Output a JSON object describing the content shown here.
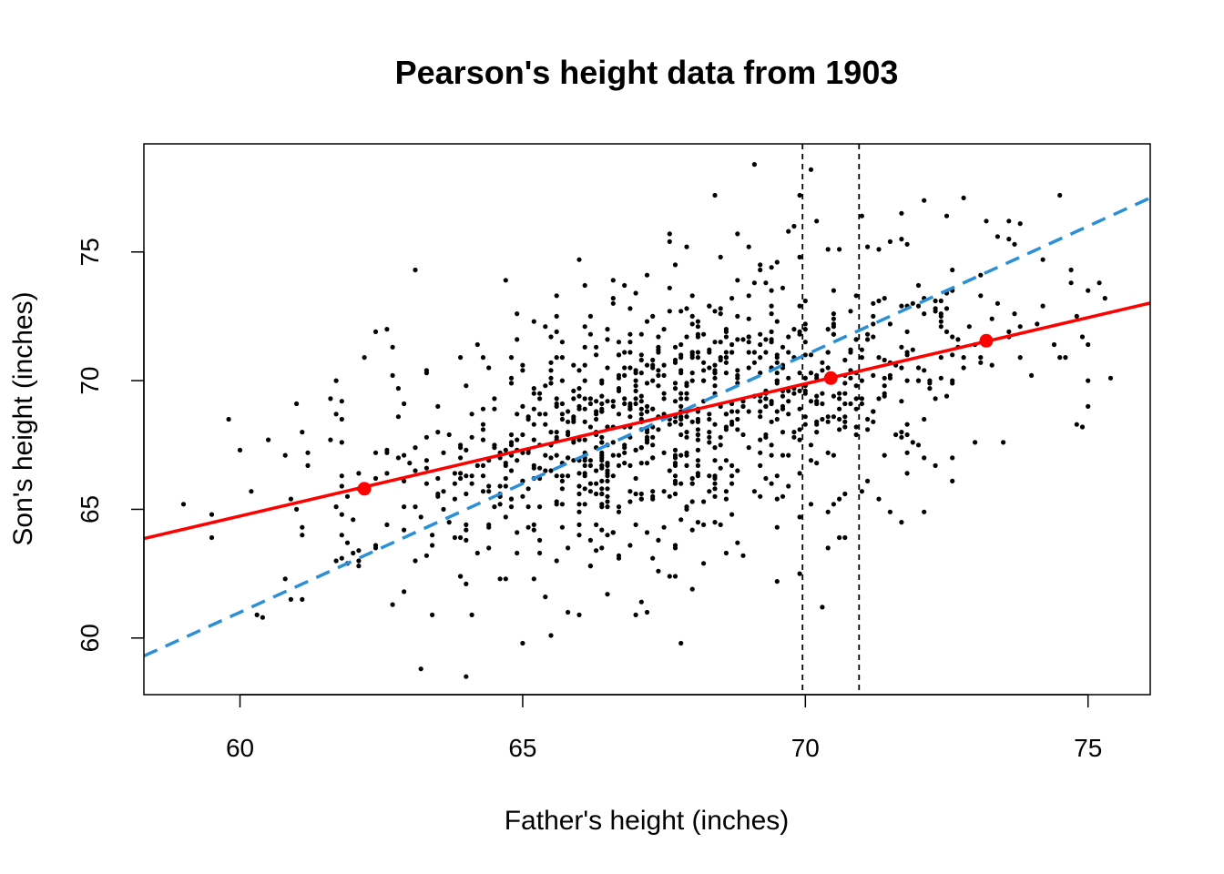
{
  "chart_data": {
    "type": "scatter",
    "title": "Pearson's height data from 1903",
    "xlabel": "Father's height (inches)",
    "ylabel": "Son's height (inches)",
    "xlim": [
      58.3,
      76.1
    ],
    "ylim": [
      57.8,
      79.2
    ],
    "xticks": [
      60,
      65,
      70,
      75
    ],
    "yticks": [
      60,
      65,
      70,
      75
    ],
    "grid": false,
    "legend": "none",
    "point_color": "#000000",
    "regression_line": {
      "intercept": 33.9,
      "slope": 0.514,
      "color": "#FF0000",
      "style": "solid"
    },
    "identity_line": {
      "intercept": 1.0,
      "slope": 1.0,
      "color": "#2B8FD8",
      "style": "dashed"
    },
    "vertical_lines": [
      69.95,
      70.95
    ],
    "highlighted_points": [
      {
        "x": 62.2,
        "y": 65.8
      },
      {
        "x": 70.45,
        "y": 70.1
      },
      {
        "x": 73.2,
        "y": 71.55
      }
    ],
    "highlight_color": "#FF0000",
    "outlier_points": [
      {
        "x": 59.0,
        "y": 65.2
      },
      {
        "x": 59.5,
        "y": 64.8
      },
      {
        "x": 59.5,
        "y": 63.9
      },
      {
        "x": 60.0,
        "y": 67.3
      },
      {
        "x": 60.2,
        "y": 65.7
      },
      {
        "x": 60.4,
        "y": 60.8
      },
      {
        "x": 60.8,
        "y": 62.3
      },
      {
        "x": 61.0,
        "y": 69.1
      },
      {
        "x": 61.1,
        "y": 68.0
      },
      {
        "x": 61.0,
        "y": 65.0
      },
      {
        "x": 61.1,
        "y": 64.3
      },
      {
        "x": 61.6,
        "y": 67.7
      },
      {
        "x": 61.8,
        "y": 67.6
      },
      {
        "x": 62.0,
        "y": 63.3
      },
      {
        "x": 62.1,
        "y": 62.8
      },
      {
        "x": 62.7,
        "y": 61.3
      },
      {
        "x": 62.9,
        "y": 61.8
      },
      {
        "x": 63.1,
        "y": 74.3
      },
      {
        "x": 63.3,
        "y": 70.4
      },
      {
        "x": 63.2,
        "y": 58.8
      },
      {
        "x": 63.3,
        "y": 63.2
      },
      {
        "x": 63.9,
        "y": 62.4
      },
      {
        "x": 64.0,
        "y": 58.5
      },
      {
        "x": 64.2,
        "y": 71.4
      },
      {
        "x": 64.7,
        "y": 73.9
      },
      {
        "x": 64.9,
        "y": 72.6
      },
      {
        "x": 65.0,
        "y": 59.8
      },
      {
        "x": 65.5,
        "y": 60.1
      },
      {
        "x": 65.8,
        "y": 61.0
      },
      {
        "x": 66.0,
        "y": 74.7
      },
      {
        "x": 66.0,
        "y": 60.9
      },
      {
        "x": 66.2,
        "y": 62.8
      },
      {
        "x": 66.5,
        "y": 61.7
      },
      {
        "x": 67.2,
        "y": 61.0
      },
      {
        "x": 67.4,
        "y": 62.6
      },
      {
        "x": 67.6,
        "y": 75.7
      },
      {
        "x": 67.7,
        "y": 74.5
      },
      {
        "x": 67.8,
        "y": 59.8
      },
      {
        "x": 68.0,
        "y": 61.9
      },
      {
        "x": 68.2,
        "y": 62.9
      },
      {
        "x": 68.4,
        "y": 77.2
      },
      {
        "x": 68.8,
        "y": 75.7
      },
      {
        "x": 69.1,
        "y": 78.4
      },
      {
        "x": 69.0,
        "y": 75.2
      },
      {
        "x": 69.5,
        "y": 62.2
      },
      {
        "x": 69.9,
        "y": 77.2
      },
      {
        "x": 69.9,
        "y": 62.5
      },
      {
        "x": 70.1,
        "y": 78.2
      },
      {
        "x": 70.3,
        "y": 61.2
      },
      {
        "x": 70.7,
        "y": 63.9
      },
      {
        "x": 71.3,
        "y": 75.1
      },
      {
        "x": 71.5,
        "y": 64.9
      },
      {
        "x": 71.7,
        "y": 64.5
      },
      {
        "x": 72.3,
        "y": 66.7
      },
      {
        "x": 72.5,
        "y": 76.4
      },
      {
        "x": 72.8,
        "y": 77.1
      },
      {
        "x": 73.0,
        "y": 67.6
      },
      {
        "x": 73.4,
        "y": 75.6
      },
      {
        "x": 73.7,
        "y": 75.3
      },
      {
        "x": 73.8,
        "y": 76.1
      },
      {
        "x": 74.0,
        "y": 70.2
      },
      {
        "x": 74.5,
        "y": 70.9
      },
      {
        "x": 74.7,
        "y": 74.3
      },
      {
        "x": 74.9,
        "y": 71.7
      },
      {
        "x": 75.0,
        "y": 71.4
      },
      {
        "x": 75.0,
        "y": 69.0
      },
      {
        "x": 75.2,
        "y": 73.8
      },
      {
        "x": 75.4,
        "y": 70.1
      }
    ],
    "cloud": {
      "n": 1010,
      "mean_x": 67.7,
      "sd_x": 2.74,
      "mean_y": 68.7,
      "sd_y": 2.81,
      "correlation": 0.5,
      "precision": 0.1,
      "x_range": [
        59.0,
        75.4
      ],
      "y_range": [
        58.5,
        78.4
      ]
    }
  }
}
